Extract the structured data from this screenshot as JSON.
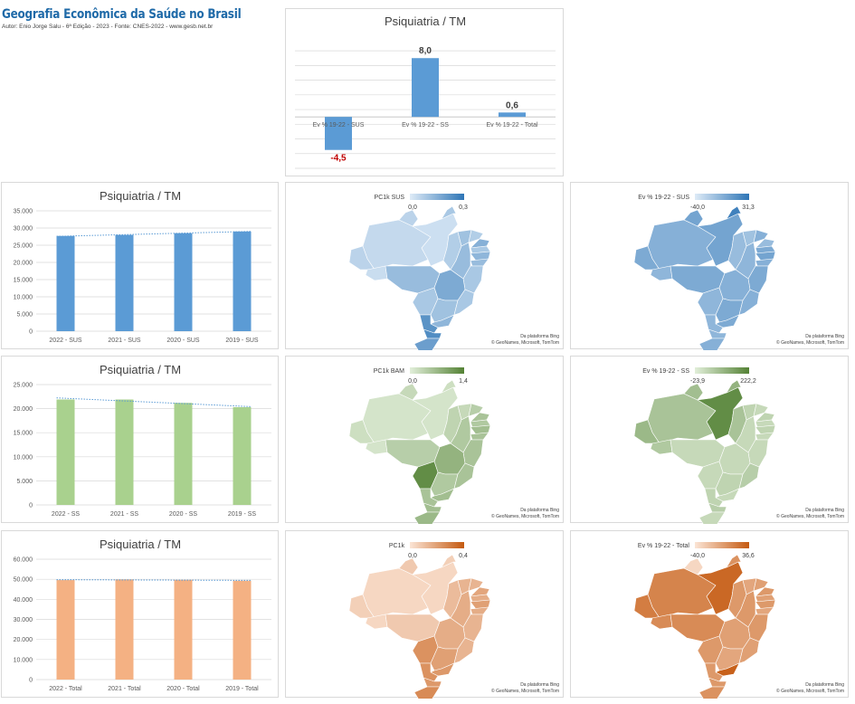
{
  "header": {
    "title": "Geografia Econômica da Saúde no Brasil",
    "subtitle": "Autor: Enio Jorge Salu - 6ª Edição - 2023 - Fonte: CNES-2022 - www.gesb.net.br"
  },
  "colors": {
    "blue": "#5b9bd5",
    "green": "#a9d18e",
    "orange": "#f4b183",
    "negative_label": "#c00000",
    "trend": "#5b9bd5"
  },
  "chart_data": [
    {
      "id": "top-variation",
      "type": "bar",
      "title": "Psiquiatria / TM",
      "categories": [
        "Ev % 19-22 - SUS",
        "Ev % 19-22 - SS",
        "Ev % 19-22 - Total"
      ],
      "values": [
        -4.5,
        8.0,
        0.6
      ],
      "data_labels": [
        "-4,5",
        "8,0",
        "0,6"
      ],
      "ylim": [
        -7,
        10
      ],
      "grid": true,
      "color": "#5b9bd5"
    },
    {
      "id": "sus",
      "type": "bar",
      "title": "Psiquiatria / TM",
      "categories": [
        "2022 - SUS",
        "2021 - SUS",
        "2020 - SUS",
        "2019 - SUS"
      ],
      "values": [
        27700,
        28000,
        28500,
        29000
      ],
      "yticks": [
        "35.000",
        "30.000",
        "25.000",
        "20.000",
        "15.000",
        "10.000",
        "5.000",
        "0"
      ],
      "ylim": [
        0,
        35000
      ],
      "trendline": true,
      "grid": true,
      "color": "#5b9bd5"
    },
    {
      "id": "ss",
      "type": "bar",
      "title": "Psiquiatria / TM",
      "categories": [
        "2022 - SS",
        "2021 - SS",
        "2020 - SS",
        "2019 - SS"
      ],
      "values": [
        21900,
        21900,
        21200,
        20300
      ],
      "yticks": [
        "25.000",
        "20.000",
        "15.000",
        "10.000",
        "5.000",
        "0"
      ],
      "ylim": [
        0,
        25000
      ],
      "trendline": true,
      "grid": true,
      "color": "#a9d18e"
    },
    {
      "id": "total",
      "type": "bar",
      "title": "Psiquiatria / TM",
      "categories": [
        "2022 - Total",
        "2021 - Total",
        "2020 - Total",
        "2019 - Total"
      ],
      "values": [
        49600,
        49900,
        49700,
        49300
      ],
      "yticks": [
        "60.000",
        "50.000",
        "40.000",
        "30.000",
        "20.000",
        "10.000",
        "0"
      ],
      "ylim": [
        0,
        60000
      ],
      "trendline": true,
      "grid": true,
      "color": "#f4b183"
    }
  ],
  "maps": [
    {
      "id": "map-pc1k-sus",
      "legend_title": "PC1k SUS",
      "min": "0,0",
      "max": "0,3",
      "color_low": "#deebf7",
      "color_high": "#2e75b6",
      "attribution_1": "Da plataforma Bing",
      "attribution_2": "© GeoNames, Microsoft, TomTom"
    },
    {
      "id": "map-ev-sus",
      "legend_title": "Ev % 19-22 - SUS",
      "min": "-40,0",
      "max": "31,3",
      "color_low": "#deebf7",
      "color_high": "#2e75b6",
      "attribution_1": "Da plataforma Bing",
      "attribution_2": "© GeoNames, Microsoft, TomTom"
    },
    {
      "id": "map-pc1k-bam",
      "legend_title": "PC1k BAM",
      "min": "0,0",
      "max": "1,4",
      "color_low": "#e2efda",
      "color_high": "#548235",
      "attribution_1": "Da plataforma Bing",
      "attribution_2": "© GeoNames, Microsoft, TomTom"
    },
    {
      "id": "map-ev-ss",
      "legend_title": "Ev % 19-22 - SS",
      "min": "-23,9",
      "max": "222,2",
      "color_low": "#e2efda",
      "color_high": "#548235",
      "attribution_1": "Da plataforma Bing",
      "attribution_2": "© GeoNames, Microsoft, TomTom"
    },
    {
      "id": "map-pc1k",
      "legend_title": "PC1k",
      "min": "0,0",
      "max": "0,4",
      "color_low": "#fbe5d6",
      "color_high": "#c55a11",
      "attribution_1": "Da plataforma Bing",
      "attribution_2": "© GeoNames, Microsoft, TomTom"
    },
    {
      "id": "map-ev-total",
      "legend_title": "Ev % 19-22 - Total",
      "min": "-40,0",
      "max": "36,6",
      "color_low": "#fbe5d6",
      "color_high": "#c55a11",
      "attribution_1": "Da plataforma Bing",
      "attribution_2": "© GeoNames, Microsoft, TomTom"
    }
  ]
}
